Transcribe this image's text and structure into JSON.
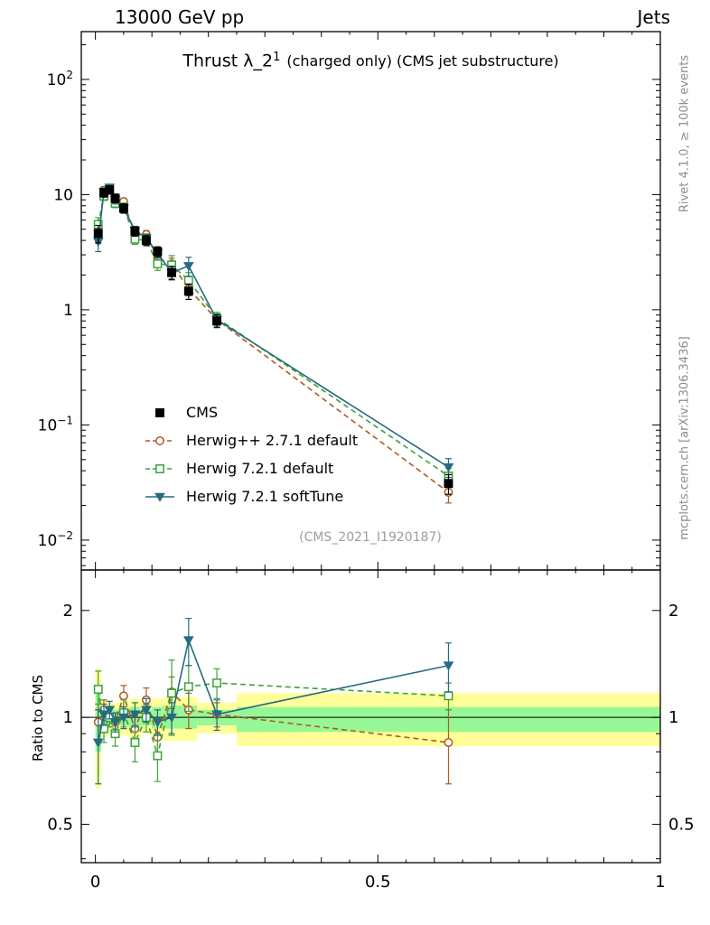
{
  "header": {
    "left": "13000 GeV pp",
    "right": "Jets"
  },
  "side_notes": {
    "top_right": "Rivet 4.1.0, ≥ 100k events",
    "bottom_right": "mcplots.cern.ch [arXiv:1306.3436]"
  },
  "watermark": "(CMS_2021_I1920187)",
  "colors": {
    "band_yellow": "#ffff99",
    "band_green": "#97f797",
    "frame": "#000000",
    "watermark_gray": "#9e9e9e",
    "side_note_gray": "#8c8c8c"
  },
  "chart_data": {
    "type": "scatter",
    "title": "Thrust λ_2^1 (charged only) (CMS jet substructure)",
    "title_parts": {
      "prefix": "Thrust λ_2",
      "sup": "1",
      "suffix": "(charged only) (CMS jet substructure)"
    },
    "xlabel": "",
    "ylabel": "",
    "xlim": [
      -0.025,
      1.0
    ],
    "xticks": {
      "major": [
        0,
        0.5,
        1
      ],
      "labels": [
        "0",
        "0.5",
        "1"
      ]
    },
    "bin_edges": [
      0,
      0.01,
      0.02,
      0.03,
      0.04,
      0.06,
      0.08,
      0.1,
      0.12,
      0.15,
      0.18,
      0.25,
      1.0
    ],
    "x": [
      0.005,
      0.015,
      0.025,
      0.035,
      0.05,
      0.07,
      0.09,
      0.11,
      0.135,
      0.165,
      0.215,
      0.625
    ],
    "main_panel": {
      "ylim": [
        0.0055,
        260
      ],
      "yticks": {
        "values": [
          100,
          10,
          1,
          0.1,
          0.01
        ],
        "labels": [
          "10^2",
          "10",
          "1",
          "10^−1",
          "10^−2"
        ]
      },
      "series": [
        {
          "id": "cms",
          "name": "CMS",
          "color": "#000000",
          "marker": "square",
          "fill": "filled",
          "line": "none",
          "values": [
            4.6,
            10.4,
            11.0,
            9.3,
            7.6,
            4.8,
            4.0,
            3.2,
            2.1,
            1.45,
            0.8,
            0.031
          ],
          "errors": [
            0.8,
            0.9,
            0.9,
            0.8,
            0.7,
            0.45,
            0.4,
            0.32,
            0.28,
            0.22,
            0.1,
            0.006
          ]
        },
        {
          "id": "herwigpp-271-default",
          "name": "Herwig++ 2.7.1 default",
          "color": "#b05a1f",
          "marker": "circle",
          "fill": "open",
          "line": "dashed",
          "values": [
            4.5,
            10.9,
            11.0,
            9.0,
            8.7,
            4.5,
            4.5,
            2.8,
            2.5,
            1.52,
            0.82,
            0.026
          ],
          "errors": [
            0.6,
            0.8,
            0.8,
            0.7,
            0.6,
            0.4,
            0.38,
            0.28,
            0.3,
            0.2,
            0.08,
            0.005
          ]
        },
        {
          "id": "herwig-721-default",
          "name": "Herwig 7.2.1 default",
          "color": "#3aa33a",
          "marker": "square",
          "fill": "open",
          "line": "dashed",
          "values": [
            5.5,
            9.7,
            11.0,
            8.4,
            7.8,
            4.1,
            4.0,
            2.5,
            2.45,
            1.8,
            0.85,
            0.036
          ],
          "errors": [
            0.8,
            0.8,
            0.8,
            0.7,
            0.6,
            0.4,
            0.35,
            0.3,
            0.5,
            0.3,
            0.1,
            0.006
          ]
        },
        {
          "id": "herwig-721-softtune",
          "name": "Herwig 7.2.1 softTune",
          "color": "#266b80",
          "marker": "triangle-down",
          "fill": "filled",
          "line": "solid",
          "values": [
            3.9,
            10.6,
            11.5,
            9.0,
            7.6,
            4.9,
            4.2,
            3.1,
            2.1,
            2.4,
            0.82,
            0.043
          ],
          "errors": [
            0.7,
            0.8,
            0.8,
            0.7,
            0.6,
            0.4,
            0.35,
            0.3,
            0.25,
            0.45,
            0.1,
            0.008
          ]
        }
      ]
    },
    "ratio_panel": {
      "label": "Ratio to CMS",
      "ylim": [
        0.39,
        2.6
      ],
      "reference_line": 1,
      "yticks": {
        "values": [
          2,
          1,
          0.5
        ],
        "labels": [
          "2",
          "1",
          "0.5"
        ]
      },
      "bands": {
        "yellow": [
          [
            0.63,
            1.37
          ],
          [
            0.88,
            1.12
          ],
          [
            0.9,
            1.1
          ],
          [
            0.9,
            1.1
          ],
          [
            0.89,
            1.11
          ],
          [
            0.87,
            1.13
          ],
          [
            0.9,
            1.1
          ],
          [
            0.87,
            1.13
          ],
          [
            0.86,
            1.14
          ],
          [
            0.86,
            1.14
          ],
          [
            0.9,
            1.1
          ],
          [
            0.83,
            1.17
          ]
        ],
        "green": [
          [
            0.8,
            1.22
          ],
          [
            0.94,
            1.06
          ],
          [
            0.95,
            1.05
          ],
          [
            0.95,
            1.05
          ],
          [
            0.95,
            1.06
          ],
          [
            0.93,
            1.07
          ],
          [
            0.95,
            1.05
          ],
          [
            0.93,
            1.07
          ],
          [
            0.93,
            1.08
          ],
          [
            0.93,
            1.08
          ],
          [
            0.95,
            1.05
          ],
          [
            0.91,
            1.07
          ]
        ]
      },
      "series": [
        {
          "ref": "herwigpp-271-default",
          "values": [
            0.97,
            1.05,
            1.0,
            0.97,
            1.15,
            0.93,
            1.12,
            0.88,
            1.18,
            1.05,
            1.02,
            0.85
          ],
          "errors": [
            0.12,
            0.07,
            0.06,
            0.06,
            0.08,
            0.08,
            0.09,
            0.1,
            0.12,
            0.12,
            0.08,
            0.2
          ]
        },
        {
          "ref": "herwig-721-default",
          "values": [
            1.2,
            0.93,
            1.0,
            0.9,
            1.03,
            0.85,
            1.0,
            0.78,
            1.17,
            1.22,
            1.25,
            1.15
          ],
          "errors": [
            0.15,
            0.08,
            0.06,
            0.07,
            0.09,
            0.1,
            0.09,
            0.12,
            0.28,
            0.18,
            0.12,
            0.1
          ]
        },
        {
          "ref": "herwig-721-softtune",
          "values": [
            0.85,
            1.02,
            1.05,
            0.97,
            1.0,
            1.02,
            1.05,
            0.97,
            1.0,
            1.65,
            1.02,
            1.4
          ],
          "errors": [
            0.2,
            0.07,
            0.06,
            0.06,
            0.07,
            0.08,
            0.08,
            0.08,
            0.1,
            0.25,
            0.1,
            0.22
          ]
        }
      ]
    }
  }
}
